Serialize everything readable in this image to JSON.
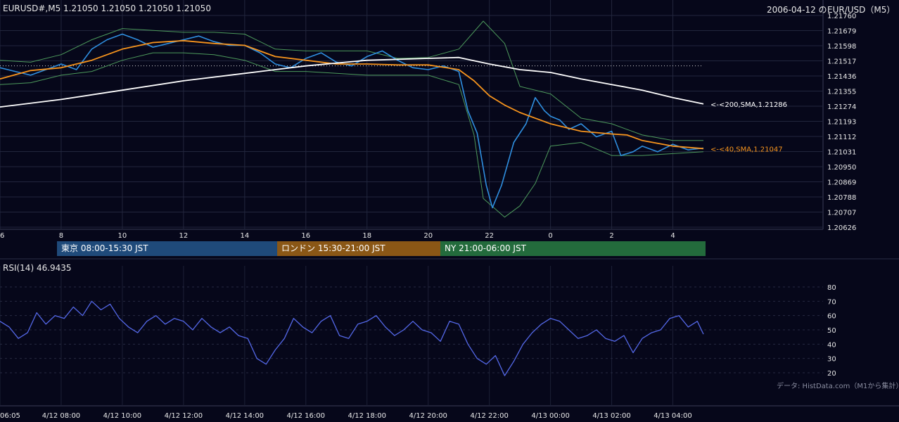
{
  "header": {
    "left": "EURUSD#,M5  1.21050 1.21050 1.21050 1.21050",
    "date": "2006-04-12 の",
    "pair": "EUR/USD（M5）"
  },
  "sessions": [
    {
      "label": "東京 08:00-15:30 JST",
      "color": "#1f4a7a"
    },
    {
      "label": "ロンドン 15:30-21:00 JST",
      "color": "#8a5716"
    },
    {
      "label": "NY 21:00-06:00 JST",
      "color": "#236b3c"
    }
  ],
  "rsi_header": "RSI(14) 46.9435",
  "credit": "データ: HistData.com（M1から集計）",
  "chart_data": [
    {
      "type": "line",
      "title": "EURUSD#,M5",
      "ylim": [
        1.20626,
        1.2176
      ],
      "y_ticks": [
        "1.21760",
        "1.21679",
        "1.21598",
        "1.21517",
        "1.21436",
        "1.21355",
        "1.21274",
        "1.21193",
        "1.21112",
        "1.21031",
        "1.20950",
        "1.20869",
        "1.20788",
        "1.20707",
        "1.20626"
      ],
      "x_ticks": [
        "6",
        "8",
        "10",
        "12",
        "14",
        "16",
        "18",
        "20",
        "22",
        "0",
        "2",
        "4"
      ],
      "x_hours": [
        6,
        8,
        10,
        12,
        14,
        16,
        18,
        20,
        22,
        24,
        26,
        28
      ],
      "x_range": [
        6.0,
        29.0
      ],
      "reference_level": 1.2149,
      "series": [
        {
          "name": "200,SMA",
          "color": "#ffffff",
          "label": "<-<200,SMA,1.21286",
          "last_value": 1.21286,
          "x": [
            6.0,
            8,
            10,
            12,
            14,
            16,
            18,
            20,
            21,
            22,
            23,
            24,
            25,
            26,
            27,
            28,
            29.0
          ],
          "values": [
            1.2127,
            1.2131,
            1.2136,
            1.2141,
            1.2145,
            1.2149,
            1.2152,
            1.2153,
            1.21535,
            1.215,
            1.2147,
            1.21455,
            1.2142,
            1.2139,
            1.2136,
            1.2132,
            1.21286
          ]
        },
        {
          "name": "40,SMA",
          "color": "#f7941d",
          "label": "<-<40,SMA,1.21047",
          "last_value": 1.21047,
          "x": [
            6.0,
            7,
            8,
            9,
            10,
            11,
            12,
            13,
            14,
            15,
            16,
            17,
            18,
            19,
            20,
            21,
            21.5,
            22,
            22.5,
            23,
            24,
            25,
            26,
            26.5,
            27,
            28,
            29.0
          ],
          "values": [
            1.2142,
            1.21465,
            1.2148,
            1.2152,
            1.2158,
            1.21615,
            1.21625,
            1.2161,
            1.216,
            1.2154,
            1.2152,
            1.215,
            1.215,
            1.21495,
            1.21495,
            1.2147,
            1.2141,
            1.2133,
            1.2128,
            1.2124,
            1.2118,
            1.2114,
            1.21125,
            1.2112,
            1.2109,
            1.2106,
            1.21047
          ]
        },
        {
          "name": "BB upper",
          "color": "#4d9a5c",
          "x": [
            6.0,
            7,
            8,
            9,
            10,
            11,
            12,
            13,
            14,
            15,
            16,
            17,
            18,
            19,
            20,
            21,
            21.8,
            22.5,
            23,
            23.5,
            24,
            25,
            26,
            27,
            28,
            29.0
          ],
          "values": [
            1.2152,
            1.2151,
            1.2155,
            1.2163,
            1.2169,
            1.2168,
            1.2167,
            1.2167,
            1.2166,
            1.2158,
            1.2157,
            1.2157,
            1.2157,
            1.2153,
            1.21535,
            1.2158,
            1.2173,
            1.2161,
            1.2138,
            1.2136,
            1.2134,
            1.2121,
            1.2118,
            1.2112,
            1.2109,
            1.2109
          ]
        },
        {
          "name": "BB lower",
          "color": "#4d9a5c",
          "x": [
            6.0,
            7,
            8,
            9,
            10,
            11,
            12,
            13,
            14,
            15,
            16,
            17,
            18,
            19,
            20,
            21,
            21.5,
            21.8,
            22.5,
            23,
            23.5,
            24,
            25,
            26,
            27,
            28,
            29.0
          ],
          "values": [
            1.2139,
            1.214,
            1.2144,
            1.2146,
            1.2152,
            1.2156,
            1.2156,
            1.2155,
            1.2152,
            1.2146,
            1.2146,
            1.2145,
            1.2144,
            1.2144,
            1.2144,
            1.2139,
            1.2112,
            1.2078,
            1.2068,
            1.2074,
            1.2086,
            1.2106,
            1.2108,
            1.2101,
            1.2101,
            1.2102,
            1.2103
          ]
        },
        {
          "name": "close",
          "color": "#2f8fe0",
          "x": [
            6.0,
            6.5,
            7,
            7.5,
            8,
            8.5,
            9,
            9.5,
            10,
            10.5,
            11,
            11.5,
            12,
            12.5,
            13,
            13.5,
            14,
            14.5,
            15,
            15.5,
            16,
            16.5,
            17,
            17.5,
            18,
            18.5,
            19,
            19.5,
            20,
            20.5,
            21,
            21.3,
            21.6,
            21.9,
            22.1,
            22.4,
            22.8,
            23.2,
            23.5,
            23.8,
            24,
            24.3,
            24.6,
            25,
            25.5,
            26,
            26.3,
            26.7,
            27,
            27.5,
            28,
            28.5,
            29.0
          ],
          "values": [
            1.2148,
            1.2146,
            1.2144,
            1.2147,
            1.215,
            1.2147,
            1.2158,
            1.2163,
            1.2166,
            1.2163,
            1.2159,
            1.2161,
            1.2163,
            1.2165,
            1.2162,
            1.216,
            1.216,
            1.2156,
            1.215,
            1.2148,
            1.2153,
            1.2156,
            1.2151,
            1.2149,
            1.2154,
            1.2157,
            1.2152,
            1.2148,
            1.2147,
            1.2149,
            1.2146,
            1.2125,
            1.2113,
            1.2085,
            1.2073,
            1.2085,
            1.2108,
            1.2118,
            1.2132,
            1.2125,
            1.2122,
            1.212,
            1.2115,
            1.2118,
            1.2111,
            1.2114,
            1.2101,
            1.2103,
            1.2106,
            1.2103,
            1.2107,
            1.2104,
            1.2105
          ]
        }
      ]
    },
    {
      "type": "line",
      "title": "RSI(14) 46.9435",
      "ylim": [
        15,
        85
      ],
      "y_ticks": [
        80,
        70,
        60,
        50,
        40,
        30,
        20
      ],
      "x_ticks": [
        "06:05",
        "4/12 08:00",
        "4/12 10:00",
        "4/12 12:00",
        "4/12 14:00",
        "4/12 16:00",
        "4/12 18:00",
        "4/12 20:00",
        "4/12 22:00",
        "4/13 00:00",
        "4/13 02:00",
        "4/13 04:00"
      ],
      "x_hours": [
        6,
        8,
        10,
        12,
        14,
        16,
        18,
        20,
        22,
        24,
        26,
        28
      ],
      "x_range": [
        6.0,
        29.0
      ],
      "series": [
        {
          "name": "RSI(14)",
          "color": "#5468e8",
          "x": [
            6.0,
            6.3,
            6.6,
            6.9,
            7.2,
            7.5,
            7.8,
            8.1,
            8.4,
            8.7,
            9.0,
            9.3,
            9.6,
            9.9,
            10.2,
            10.5,
            10.8,
            11.1,
            11.4,
            11.7,
            12.0,
            12.3,
            12.6,
            12.9,
            13.2,
            13.5,
            13.8,
            14.1,
            14.4,
            14.7,
            15.0,
            15.3,
            15.6,
            15.9,
            16.2,
            16.5,
            16.8,
            17.1,
            17.4,
            17.7,
            18.0,
            18.3,
            18.6,
            18.9,
            19.2,
            19.5,
            19.8,
            20.1,
            20.4,
            20.7,
            21.0,
            21.3,
            21.6,
            21.9,
            22.2,
            22.5,
            22.8,
            23.1,
            23.4,
            23.7,
            24.0,
            24.3,
            24.6,
            24.9,
            25.2,
            25.5,
            25.8,
            26.1,
            26.4,
            26.7,
            27.0,
            27.3,
            27.6,
            27.9,
            28.2,
            28.5,
            28.8,
            29.0
          ],
          "values": [
            56,
            52,
            44,
            48,
            62,
            54,
            60,
            58,
            66,
            60,
            70,
            64,
            68,
            58,
            52,
            48,
            56,
            60,
            54,
            58,
            56,
            50,
            58,
            52,
            48,
            52,
            46,
            44,
            30,
            26,
            36,
            44,
            58,
            52,
            48,
            56,
            60,
            46,
            44,
            54,
            56,
            60,
            52,
            46,
            50,
            56,
            50,
            48,
            42,
            56,
            54,
            40,
            30,
            26,
            32,
            18,
            28,
            40,
            48,
            54,
            58,
            56,
            50,
            44,
            46,
            50,
            44,
            42,
            46,
            34,
            44,
            48,
            50,
            58,
            60,
            52,
            56,
            47
          ]
        }
      ]
    }
  ]
}
